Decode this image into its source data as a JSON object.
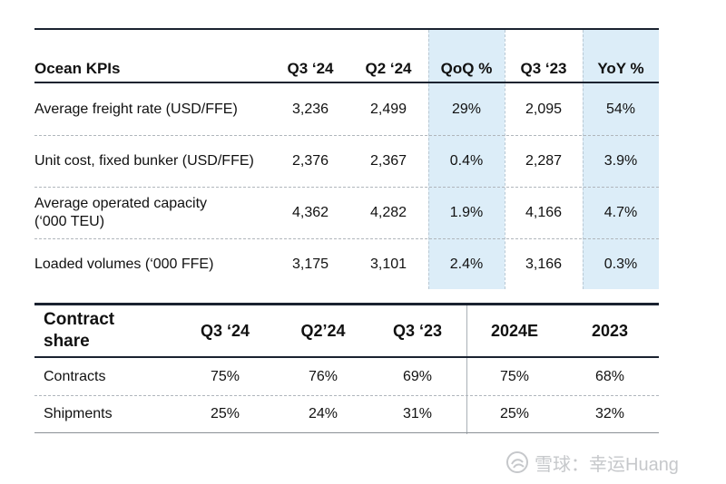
{
  "ocean": {
    "headers": [
      "Ocean KPIs",
      "Q3 ‘24",
      "Q2 ‘24",
      "QoQ %",
      "Q3 ‘23",
      "YoY %"
    ],
    "rows": [
      {
        "label": "Average freight rate (USD/FFE)",
        "values": [
          "3,236",
          "2,499",
          "29%",
          "2,095",
          "54%"
        ]
      },
      {
        "label": "Unit cost, fixed bunker (USD/FFE)",
        "values": [
          "2,376",
          "2,367",
          "0.4%",
          "2,287",
          "3.9%"
        ]
      },
      {
        "label_lines": [
          "Average operated capacity",
          "(‘000 TEU)"
        ],
        "values": [
          "4,362",
          "4,282",
          "1.9%",
          "4,166",
          "4.7%"
        ]
      },
      {
        "label": "Loaded volumes (‘000 FFE)",
        "values": [
          "3,175",
          "3,101",
          "2.4%",
          "3,166",
          "0.3%"
        ]
      }
    ],
    "highlight_color": "#dcedf8"
  },
  "contract": {
    "header_lines": [
      "Contract",
      "share"
    ],
    "headers": [
      "Q3 ‘24",
      "Q2’24",
      "Q3 ‘23",
      "2024E",
      "2023"
    ],
    "rows": [
      {
        "label": "Contracts",
        "values": [
          "75%",
          "76%",
          "69%",
          "75%",
          "68%"
        ]
      },
      {
        "label": "Shipments",
        "values": [
          "25%",
          "24%",
          "31%",
          "25%",
          "32%"
        ]
      }
    ]
  },
  "watermark": {
    "text": "雪球：幸运Huang",
    "icon": "snowball-logo-icon"
  }
}
